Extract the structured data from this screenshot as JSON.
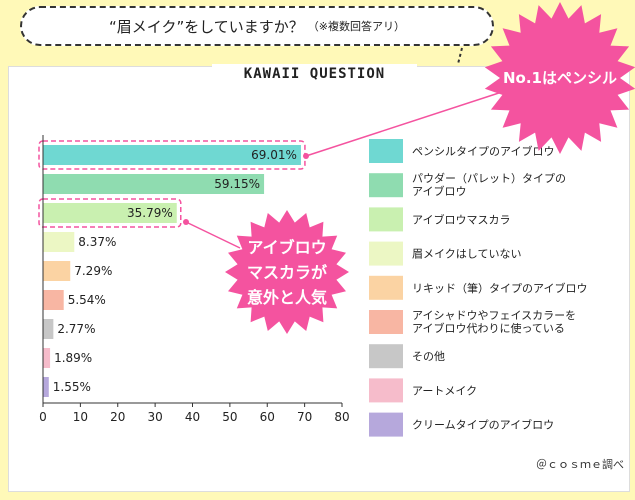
{
  "header": {
    "question": "“眉メイク”をしていますか？",
    "note": "（※複数回答アリ）",
    "badge": "KAWAII QUESTION"
  },
  "callouts": {
    "top": "No.1はペンシル",
    "mid": [
      "アイブロウ",
      "マスカラが",
      "意外と人気"
    ]
  },
  "source": "＠ｃｏｓｍｅ調べ",
  "chart_data": {
    "type": "bar",
    "orientation": "horizontal",
    "categories": [
      "ペンシルタイプのアイブロウ",
      "パウダー（パレット）タイプのアイブロウ",
      "アイブロウマスカラ",
      "眉メイクはしていない",
      "リキッド（筆）タイプのアイブロウ",
      "アイシャドウやフェイスカラーをアイブロウ代わりに使っている",
      "その他",
      "アートメイク",
      "クリームタイプのアイブロウ"
    ],
    "legend_lines": [
      [
        "ペンシルタイプのアイブロウ"
      ],
      [
        "パウダー（パレット）タイプの",
        "アイブロウ"
      ],
      [
        "アイブロウマスカラ"
      ],
      [
        "眉メイクはしていない"
      ],
      [
        "リキッド（筆）タイプのアイブロウ"
      ],
      [
        "アイシャドウやフェイスカラーを",
        "アイブロウ代わりに使っている"
      ],
      [
        "その他"
      ],
      [
        "アートメイク"
      ],
      [
        "クリームタイプのアイブロウ"
      ]
    ],
    "values": [
      69.01,
      59.15,
      35.79,
      8.37,
      7.29,
      5.54,
      2.77,
      1.89,
      1.55
    ],
    "value_labels": [
      "69.01%",
      "59.15%",
      "35.79%",
      "8.37%",
      "7.29%",
      "5.54%",
      "2.77%",
      "1.89%",
      "1.55%"
    ],
    "colors": [
      "#6fd8d2",
      "#8fdcb0",
      "#c9f0b0",
      "#ecf7c4",
      "#fbd3a3",
      "#f8b6a3",
      "#c7c7c7",
      "#f6bccb",
      "#b6a8dc"
    ],
    "highlighted": [
      0,
      2
    ],
    "xlim": [
      0,
      80
    ],
    "xticks": [
      0,
      10,
      20,
      30,
      40,
      50,
      60,
      70,
      80
    ],
    "legend_position": "right",
    "grid": false
  }
}
